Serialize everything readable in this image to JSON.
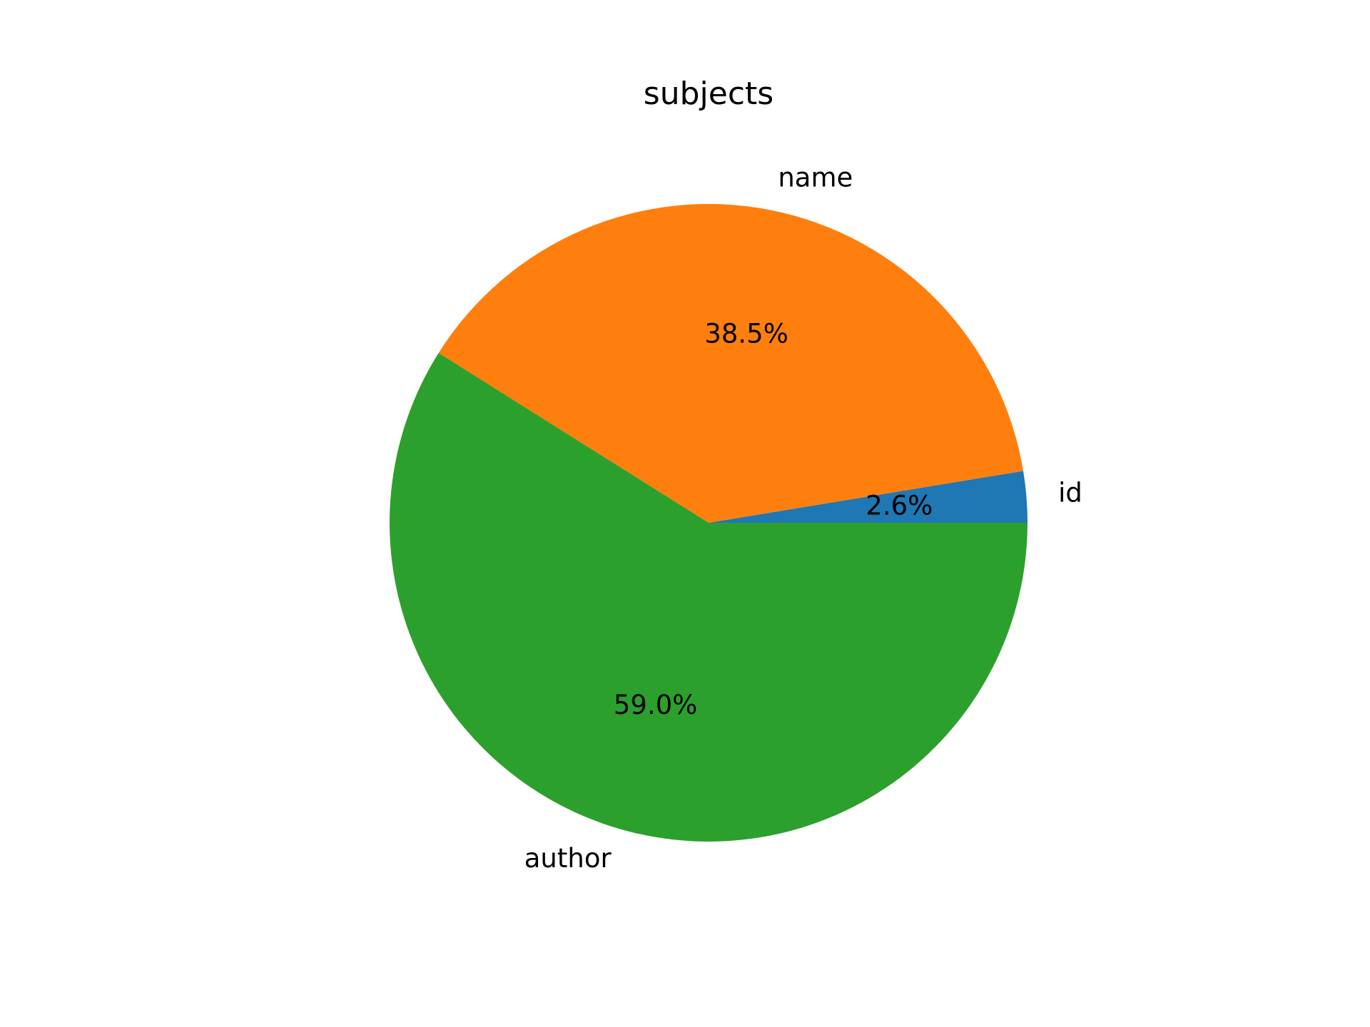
{
  "chart_data": {
    "type": "pie",
    "title": "subjects",
    "start_angle_deg": 0,
    "direction": "counterclockwise",
    "slices": [
      {
        "label": "id",
        "value": 2.6,
        "pct_label": "2.6%",
        "color": "#1f77b4"
      },
      {
        "label": "name",
        "value": 38.5,
        "pct_label": "38.5%",
        "color": "#ff7f0e"
      },
      {
        "label": "author",
        "value": 59.0,
        "pct_label": "59.0%",
        "color": "#2ca02c"
      }
    ]
  }
}
